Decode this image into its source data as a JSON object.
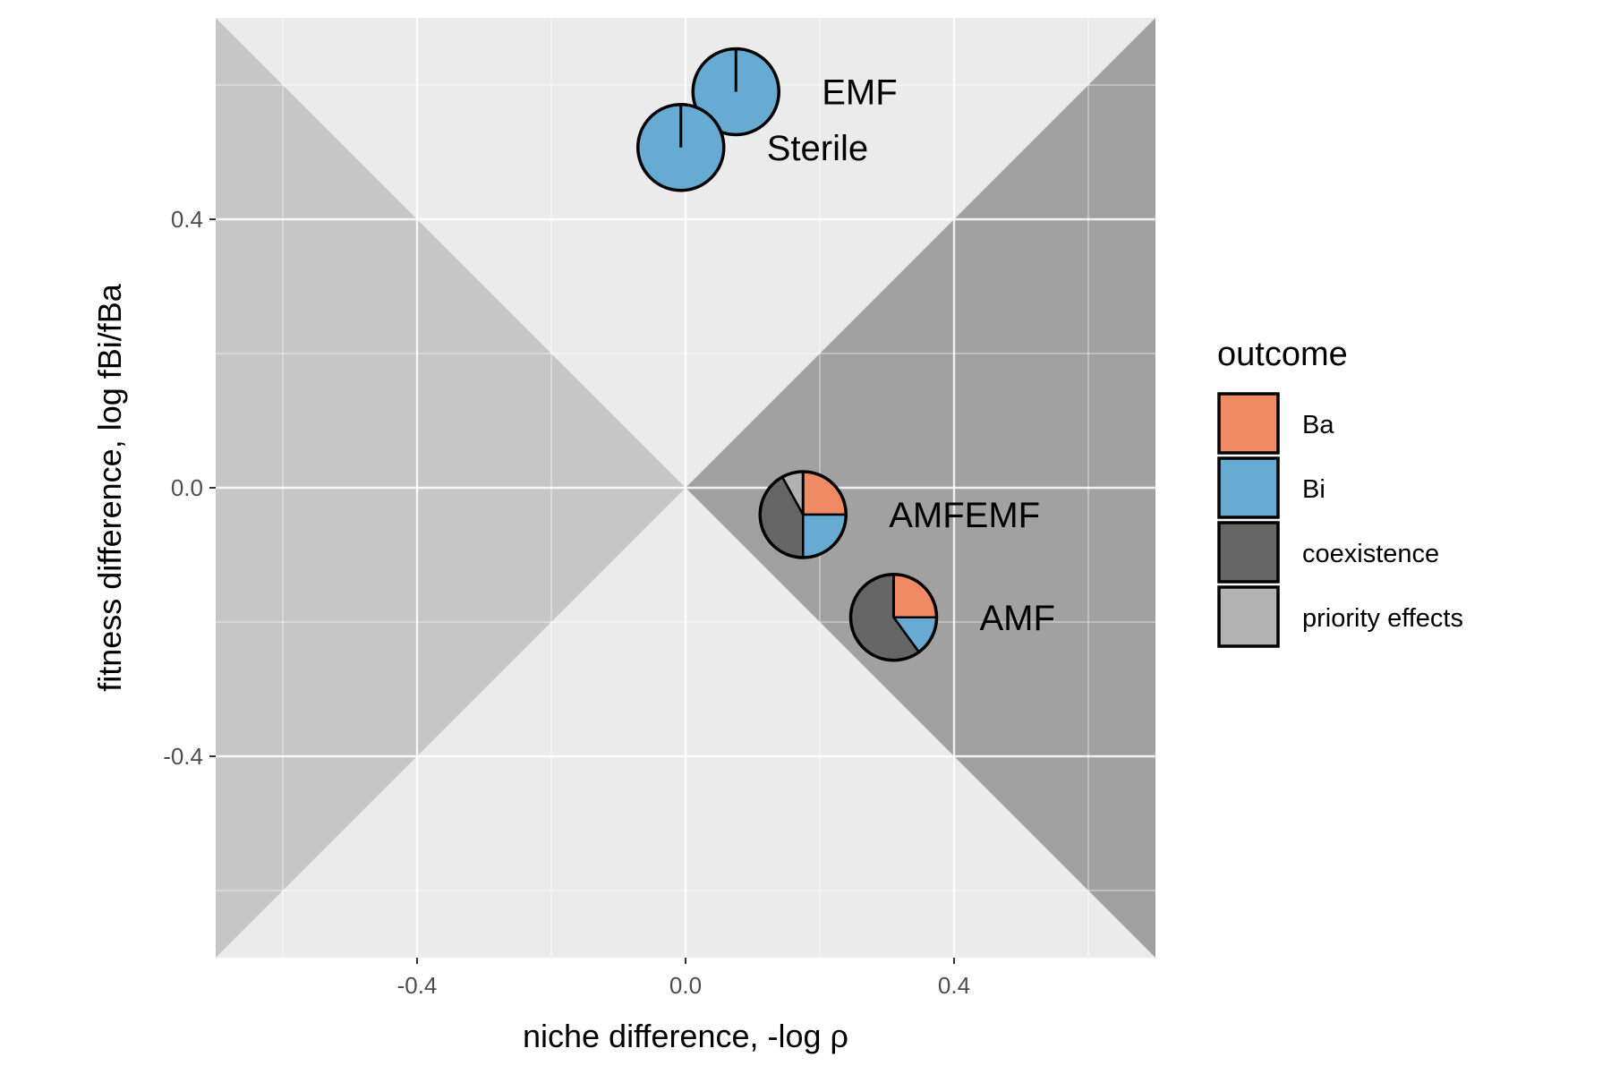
{
  "chart_data": {
    "type": "scatter",
    "subtype": "pie-glyph scatter",
    "title": "",
    "xlabel": "niche difference, -log ρ",
    "ylabel": "fitness difference, log fBi/fBa",
    "xlim": [
      -0.7,
      0.7
    ],
    "ylim": [
      -0.7,
      0.7
    ],
    "x_ticks": [
      -0.4,
      0.0,
      0.4
    ],
    "x_tick_labels": [
      "-0.4",
      "0.0",
      "0.4"
    ],
    "y_ticks": [
      -0.4,
      0.0,
      0.4
    ],
    "y_tick_labels": [
      "-0.4",
      "0.0",
      "0.4"
    ],
    "grid": true,
    "background_regions": [
      {
        "name": "left triangle region",
        "vertices": [
          [
            -0.7,
            0.7
          ],
          [
            0.0,
            0.0
          ],
          [
            -0.7,
            -0.7
          ]
        ],
        "color": "#c6c6c6"
      },
      {
        "name": "right triangle region",
        "vertices": [
          [
            0.7,
            0.7
          ],
          [
            0.0,
            0.0
          ],
          [
            0.7,
            -0.7
          ]
        ],
        "color": "#a1a1a1"
      }
    ],
    "legend": {
      "title": "outcome",
      "position": "right",
      "entries": [
        {
          "label": "Ba",
          "color": "#f08a64"
        },
        {
          "label": "Bi",
          "color": "#67aad2"
        },
        {
          "label": "coexistence",
          "color": "#666666"
        },
        {
          "label": "priority effects",
          "color": "#b2b2b2"
        }
      ]
    },
    "series": [
      {
        "label": "EMF",
        "x": 0.075,
        "y": 0.59,
        "shares": {
          "Ba": 0.0,
          "Bi": 1.0,
          "coexistence": 0.0,
          "priority effects": 0.0
        }
      },
      {
        "label": "Sterile",
        "x": -0.007,
        "y": 0.507,
        "shares": {
          "Ba": 0.0,
          "Bi": 1.0,
          "coexistence": 0.0,
          "priority effects": 0.0
        }
      },
      {
        "label": "AMFEMF",
        "x": 0.175,
        "y": -0.04,
        "shares": {
          "Ba": 0.25,
          "Bi": 0.25,
          "coexistence": 0.42,
          "priority effects": 0.08
        }
      },
      {
        "label": "AMF",
        "x": 0.31,
        "y": -0.193,
        "shares": {
          "Ba": 0.25,
          "Bi": 0.15,
          "coexistence": 0.6,
          "priority effects": 0.0
        }
      }
    ]
  }
}
